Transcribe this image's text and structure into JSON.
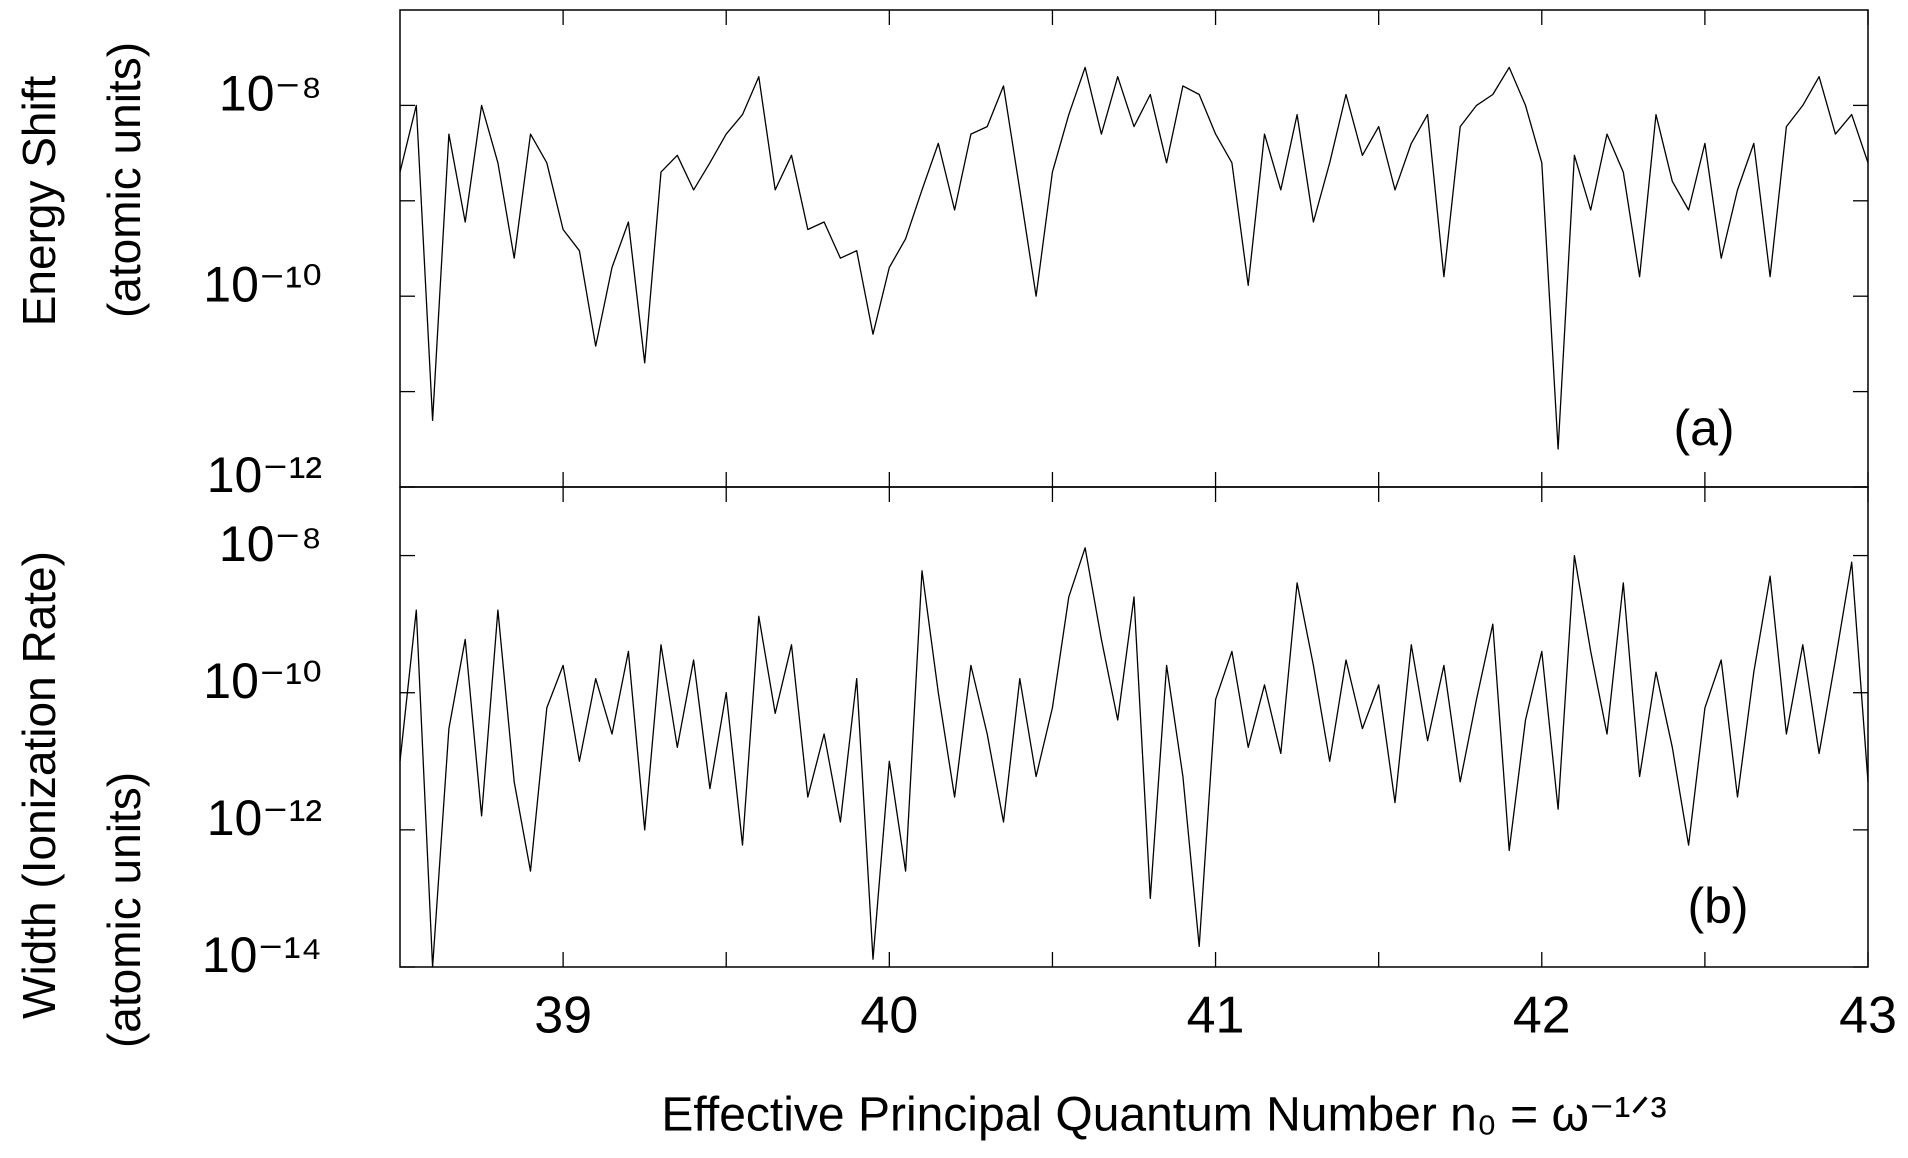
{
  "chart_data": [
    {
      "type": "line",
      "log_y": true,
      "color": "#000000",
      "show_xtick_labels": false,
      "ylabel": [
        "Energy Shift",
        "(atomic units)"
      ],
      "annotation": "(a)",
      "xlim": [
        38.5,
        43
      ],
      "xticks": [
        39,
        40,
        41,
        42,
        43
      ],
      "minor_xticks": [
        39.5,
        40.5,
        41.5,
        42.5
      ],
      "ylim": [
        1e-12,
        1e-07
      ],
      "yticks": [
        {
          "value": 1e-12,
          "label": "10⁻¹²"
        },
        {
          "value": 1e-10,
          "label": "10⁻¹⁰"
        },
        {
          "value": 1e-08,
          "label": "10⁻⁸"
        }
      ],
      "minor_yticks": [
        1e-11,
        1e-09
      ],
      "x": [
        38.5,
        38.55,
        38.6,
        38.65,
        38.7,
        38.75,
        38.8,
        38.85,
        38.9,
        38.95,
        39,
        39.05,
        39.1,
        39.15,
        39.2,
        39.25,
        39.3,
        39.35,
        39.4,
        39.45,
        39.5,
        39.55,
        39.6,
        39.65,
        39.7,
        39.75,
        39.8,
        39.85,
        39.9,
        39.95,
        40,
        40.05,
        40.1,
        40.15,
        40.2,
        40.25,
        40.3,
        40.35,
        40.4,
        40.45,
        40.5,
        40.55,
        40.6,
        40.65,
        40.7,
        40.75,
        40.8,
        40.85,
        40.9,
        40.95,
        41,
        41.05,
        41.1,
        41.15,
        41.2,
        41.25,
        41.3,
        41.35,
        41.4,
        41.45,
        41.5,
        41.55,
        41.6,
        41.65,
        41.7,
        41.75,
        41.8,
        41.85,
        41.9,
        41.95,
        42,
        42.05,
        42.1,
        42.15,
        42.2,
        42.25,
        42.3,
        42.35,
        42.4,
        42.45,
        42.5,
        42.55,
        42.6,
        42.65,
        42.7,
        42.75,
        42.8,
        42.85,
        42.9,
        42.95,
        43
      ],
      "values": [
        2e-09,
        1e-08,
        5e-12,
        5e-09,
        6e-10,
        1e-08,
        2.5e-09,
        2.5e-10,
        5e-09,
        2.5e-09,
        5e-10,
        3e-10,
        3e-11,
        2e-10,
        6e-10,
        2e-11,
        2e-09,
        3e-09,
        1.3e-09,
        2.5e-09,
        5e-09,
        8e-09,
        2e-08,
        1.3e-09,
        3e-09,
        5e-10,
        6e-10,
        2.5e-10,
        3e-10,
        4e-11,
        2e-10,
        4e-10,
        1.3e-09,
        4e-09,
        8e-10,
        5e-09,
        6e-09,
        1.6e-08,
        1.3e-09,
        1e-10,
        2e-09,
        8e-09,
        2.5e-08,
        5e-09,
        2e-08,
        6e-09,
        1.3e-08,
        2.5e-09,
        1.6e-08,
        1.3e-08,
        5e-09,
        2.5e-09,
        1.3e-10,
        5e-09,
        1.3e-09,
        8e-09,
        6e-10,
        2.5e-09,
        1.3e-08,
        3e-09,
        6e-09,
        1.3e-09,
        4e-09,
        8e-09,
        1.6e-10,
        6e-09,
        1e-08,
        1.3e-08,
        2.5e-08,
        1e-08,
        2.5e-09,
        2.5e-12,
        3e-09,
        8e-10,
        5e-09,
        2e-09,
        1.6e-10,
        8e-09,
        1.6e-09,
        8e-10,
        4e-09,
        2.5e-10,
        1.3e-09,
        4e-09,
        1.6e-10,
        6e-09,
        1e-08,
        2e-08,
        5e-09,
        8e-09,
        2.5e-09
      ]
    },
    {
      "type": "line",
      "log_y": true,
      "color": "#000000",
      "ylabel": [
        "Width (Ionization Rate)",
        "(atomic units)"
      ],
      "annotation": "(b)",
      "xlabel": "Effective Principal Quantum Number n₀ = ω⁻¹ᐟ³",
      "xlim": [
        38.5,
        43
      ],
      "xticks": [
        39,
        40,
        41,
        42,
        43
      ],
      "minor_xticks": [
        39.5,
        40.5,
        41.5,
        42.5
      ],
      "ylim": [
        1e-14,
        1e-07
      ],
      "yticks": [
        {
          "value": 1e-14,
          "label": "10⁻¹⁴"
        },
        {
          "value": 1e-12,
          "label": "10⁻¹²"
        },
        {
          "value": 1e-10,
          "label": "10⁻¹⁰"
        },
        {
          "value": 1e-08,
          "label": "10⁻⁸"
        }
      ],
      "x": [
        38.5,
        38.55,
        38.6,
        38.65,
        38.7,
        38.75,
        38.8,
        38.85,
        38.9,
        38.95,
        39,
        39.05,
        39.1,
        39.15,
        39.2,
        39.25,
        39.3,
        39.35,
        39.4,
        39.45,
        39.5,
        39.55,
        39.6,
        39.65,
        39.7,
        39.75,
        39.8,
        39.85,
        39.9,
        39.95,
        40,
        40.05,
        40.1,
        40.15,
        40.2,
        40.25,
        40.3,
        40.35,
        40.4,
        40.45,
        40.5,
        40.55,
        40.6,
        40.65,
        40.7,
        40.75,
        40.8,
        40.85,
        40.9,
        40.95,
        41,
        41.05,
        41.1,
        41.15,
        41.2,
        41.25,
        41.3,
        41.35,
        41.4,
        41.45,
        41.5,
        41.55,
        41.6,
        41.65,
        41.7,
        41.75,
        41.8,
        41.85,
        41.9,
        41.95,
        42,
        42.05,
        42.1,
        42.15,
        42.2,
        42.25,
        42.3,
        42.35,
        42.4,
        42.45,
        42.5,
        42.55,
        42.6,
        42.65,
        42.7,
        42.75,
        42.8,
        42.85,
        42.9,
        42.95,
        43
      ],
      "values": [
        1e-11,
        1.6e-09,
        1e-14,
        3e-11,
        6e-10,
        1.6e-12,
        1.6e-09,
        5e-12,
        2.5e-13,
        6e-11,
        2.5e-10,
        1e-11,
        1.6e-10,
        2.5e-11,
        4e-10,
        1e-12,
        5e-10,
        1.6e-11,
        3e-10,
        4e-12,
        1e-10,
        6e-13,
        1.3e-09,
        5e-11,
        5e-10,
        3e-12,
        2.5e-11,
        1.3e-12,
        1.6e-10,
        1.3e-14,
        1e-11,
        2.5e-13,
        6e-09,
        1e-10,
        3e-12,
        2.5e-10,
        2.5e-11,
        1.3e-12,
        1.6e-10,
        6e-12,
        6e-11,
        2.5e-09,
        1.3e-08,
        6e-10,
        4e-11,
        2.5e-09,
        1e-13,
        2.5e-10,
        6e-12,
        2e-14,
        8e-11,
        4e-10,
        1.6e-11,
        1.3e-10,
        1.3e-11,
        4e-09,
        2.5e-10,
        1e-11,
        3e-10,
        3e-11,
        1.3e-10,
        2.5e-12,
        5e-10,
        2e-11,
        2.5e-10,
        5e-12,
        8e-11,
        1e-09,
        5e-13,
        4e-11,
        4e-10,
        2e-12,
        1e-08,
        4e-10,
        2.5e-11,
        4e-09,
        6e-12,
        2e-10,
        1.6e-11,
        6e-13,
        6e-11,
        3e-10,
        3e-12,
        2e-10,
        5e-09,
        2.5e-11,
        5e-10,
        1.3e-11,
        3e-10,
        8e-09,
        5e-12
      ]
    }
  ]
}
